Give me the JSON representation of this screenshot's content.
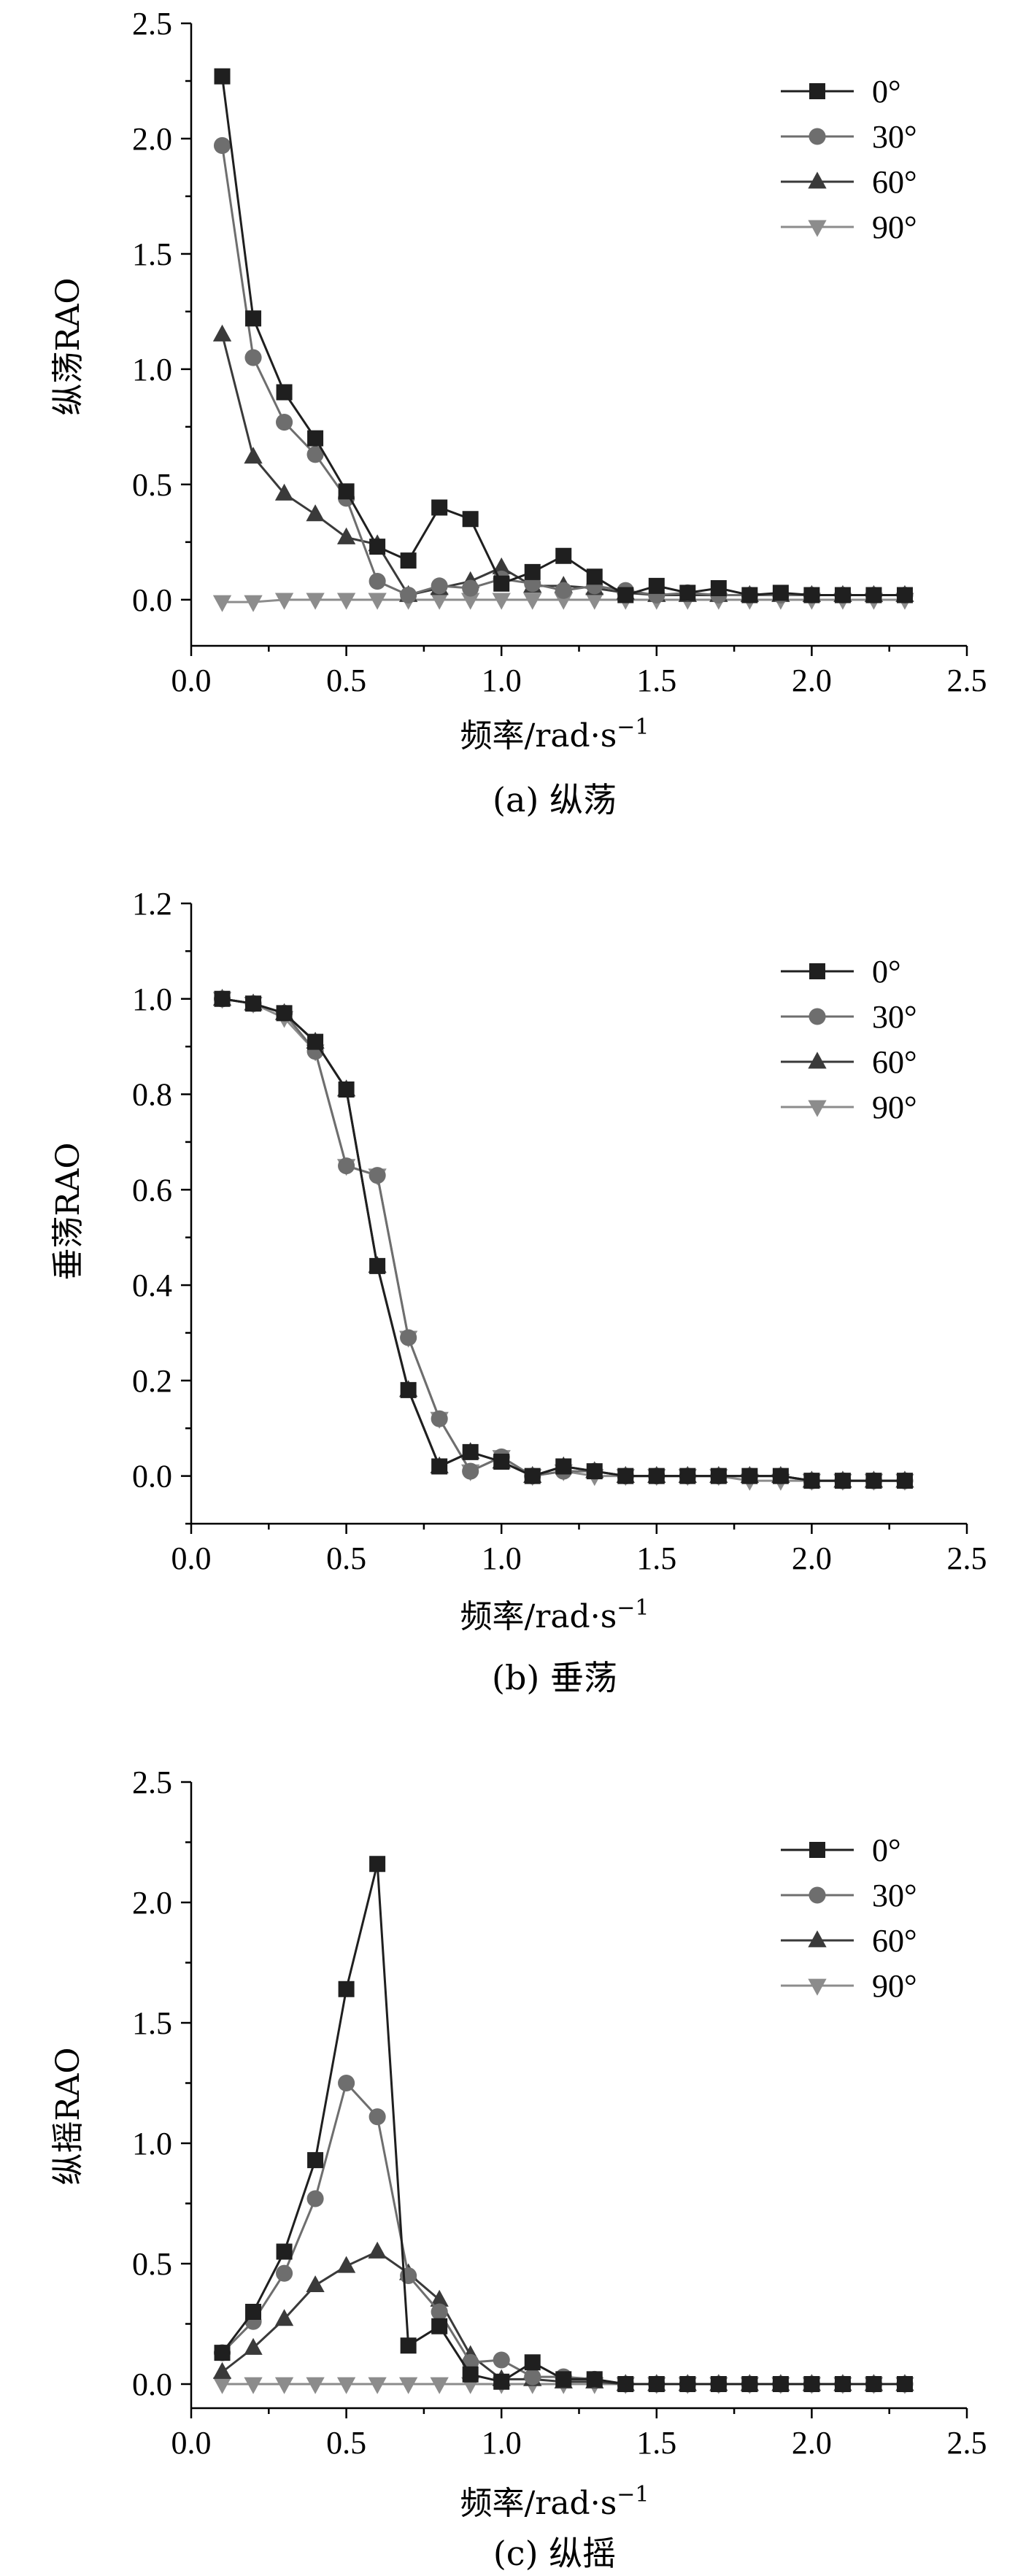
{
  "colors": {
    "0deg": "#1f1f1f",
    "30deg": "#6e6e6e",
    "60deg": "#3a3a3a",
    "90deg": "#8c8c8c"
  },
  "chart_data": [
    {
      "type": "line",
      "caption": "(a) 纵荡",
      "xlabel_main": "频率/rad·s",
      "xlabel_sup": "−1",
      "ylabel": "纵荡RAO",
      "xlim": [
        0.0,
        2.5
      ],
      "ylim": [
        -0.2,
        2.5
      ],
      "xticks": [
        "0.0",
        "0.5",
        "1.0",
        "1.5",
        "2.0",
        "2.5"
      ],
      "yticks": [
        "0.0",
        "0.5",
        "1.0",
        "1.5",
        "2.0",
        "2.5"
      ],
      "legend_position": "top-right",
      "x": [
        0.1,
        0.2,
        0.3,
        0.4,
        0.5,
        0.6,
        0.7,
        0.8,
        0.9,
        1.0,
        1.1,
        1.2,
        1.3,
        1.4,
        1.5,
        1.6,
        1.7,
        1.8,
        1.9,
        2.0,
        2.1,
        2.2,
        2.3
      ],
      "series": [
        {
          "name": "0°",
          "marker": "square",
          "color_key": "0deg",
          "values": [
            2.27,
            1.22,
            0.9,
            0.7,
            0.47,
            0.23,
            0.17,
            0.4,
            0.35,
            0.07,
            0.12,
            0.19,
            0.1,
            0.02,
            0.06,
            0.03,
            0.05,
            0.02,
            0.03,
            0.02,
            0.02,
            0.02,
            0.02
          ]
        },
        {
          "name": "30°",
          "marker": "circle",
          "color_key": "30deg",
          "values": [
            1.97,
            1.05,
            0.77,
            0.63,
            0.44,
            0.08,
            0.02,
            0.06,
            0.05,
            0.09,
            0.07,
            0.04,
            0.06,
            0.04,
            0.02,
            0.03,
            0.02,
            0.02,
            0.02,
            0.02,
            0.02,
            0.02,
            0.02
          ]
        },
        {
          "name": "60°",
          "marker": "triangle-up",
          "color_key": "60deg",
          "values": [
            1.15,
            0.62,
            0.46,
            0.37,
            0.27,
            0.24,
            0.02,
            0.05,
            0.08,
            0.14,
            0.06,
            0.06,
            0.05,
            0.03,
            0.02,
            0.02,
            0.02,
            0.02,
            0.02,
            0.02,
            0.02,
            0.02,
            0.02
          ]
        },
        {
          "name": "90°",
          "marker": "triangle-down",
          "color_key": "90deg",
          "values": [
            -0.01,
            -0.01,
            0.0,
            0.0,
            0.0,
            0.0,
            0.0,
            0.0,
            0.0,
            0.0,
            0.0,
            0.0,
            0.0,
            0.0,
            0.0,
            0.0,
            0.0,
            0.0,
            0.0,
            0.0,
            0.0,
            0.0,
            0.0
          ]
        }
      ]
    },
    {
      "type": "line",
      "caption": "(b) 垂荡",
      "xlabel_main": "频率/rad·s",
      "xlabel_sup": "−1",
      "ylabel": "垂荡RAO",
      "xlim": [
        0.0,
        2.5
      ],
      "ylim": [
        -0.1,
        1.2
      ],
      "xticks": [
        "0.0",
        "0.5",
        "1.0",
        "1.5",
        "2.0",
        "2.5"
      ],
      "yticks": [
        "0.0",
        "0.2",
        "0.4",
        "0.6",
        "0.8",
        "1.0",
        "1.2"
      ],
      "legend_position": "top-right",
      "x": [
        0.1,
        0.2,
        0.3,
        0.4,
        0.5,
        0.6,
        0.7,
        0.8,
        0.9,
        1.0,
        1.1,
        1.2,
        1.3,
        1.4,
        1.5,
        1.6,
        1.7,
        1.8,
        1.9,
        2.0,
        2.1,
        2.2,
        2.3
      ],
      "series": [
        {
          "name": "0°",
          "marker": "square",
          "color_key": "0deg",
          "values": [
            1.0,
            0.99,
            0.97,
            0.91,
            0.81,
            0.44,
            0.18,
            0.02,
            0.05,
            0.03,
            0.0,
            0.02,
            0.01,
            0.0,
            0.0,
            0.0,
            0.0,
            0.0,
            0.0,
            -0.01,
            -0.01,
            -0.01,
            -0.01
          ]
        },
        {
          "name": "30°",
          "marker": "circle",
          "color_key": "30deg",
          "values": [
            1.0,
            0.99,
            0.97,
            0.89,
            0.65,
            0.63,
            0.29,
            0.12,
            0.01,
            0.04,
            0.0,
            0.01,
            0.01,
            0.0,
            0.0,
            0.0,
            0.0,
            0.0,
            0.0,
            -0.01,
            -0.01,
            -0.01,
            -0.01
          ]
        },
        {
          "name": "60°",
          "marker": "triangle-up",
          "color_key": "60deg",
          "values": [
            1.0,
            0.99,
            0.97,
            0.91,
            0.81,
            0.44,
            0.18,
            0.02,
            0.05,
            0.03,
            0.0,
            0.02,
            0.01,
            0.0,
            0.0,
            0.0,
            0.0,
            0.0,
            0.0,
            -0.01,
            -0.01,
            -0.01,
            -0.01
          ]
        },
        {
          "name": "90°",
          "marker": "triangle-down",
          "color_key": "90deg",
          "values": [
            1.0,
            0.99,
            0.96,
            0.89,
            0.65,
            0.63,
            0.29,
            0.12,
            0.01,
            0.04,
            0.0,
            0.01,
            0.0,
            0.0,
            0.0,
            0.0,
            0.0,
            -0.01,
            -0.01,
            -0.01,
            -0.01,
            -0.01,
            -0.01
          ]
        }
      ]
    },
    {
      "type": "line",
      "caption": "(c) 纵摇",
      "xlabel_main": "频率/rad·s",
      "xlabel_sup": "−1",
      "ylabel": "纵摇RAO",
      "xlim": [
        0.0,
        2.5
      ],
      "ylim": [
        -0.1,
        2.5
      ],
      "xticks": [
        "0.0",
        "0.5",
        "1.0",
        "1.5",
        "2.0",
        "2.5"
      ],
      "yticks": [
        "0.0",
        "0.5",
        "1.0",
        "1.5",
        "2.0",
        "2.5"
      ],
      "legend_position": "top-right",
      "x": [
        0.1,
        0.2,
        0.3,
        0.4,
        0.5,
        0.6,
        0.7,
        0.8,
        0.9,
        1.0,
        1.1,
        1.2,
        1.3,
        1.4,
        1.5,
        1.6,
        1.7,
        1.8,
        1.9,
        2.0,
        2.1,
        2.2,
        2.3
      ],
      "series": [
        {
          "name": "0°",
          "marker": "square",
          "color_key": "0deg",
          "values": [
            0.13,
            0.3,
            0.55,
            0.93,
            1.64,
            2.16,
            0.16,
            0.24,
            0.04,
            0.01,
            0.09,
            0.02,
            0.02,
            0.0,
            0.0,
            0.0,
            0.0,
            0.0,
            0.0,
            0.0,
            0.0,
            0.0,
            0.0
          ]
        },
        {
          "name": "30°",
          "marker": "circle",
          "color_key": "30deg",
          "values": [
            0.13,
            0.26,
            0.46,
            0.77,
            1.25,
            1.11,
            0.45,
            0.3,
            0.09,
            0.1,
            0.03,
            0.03,
            0.02,
            0.0,
            0.0,
            0.0,
            0.0,
            0.0,
            0.0,
            0.0,
            0.0,
            0.0,
            0.0
          ]
        },
        {
          "name": "60°",
          "marker": "triangle-up",
          "color_key": "60deg",
          "values": [
            0.05,
            0.15,
            0.27,
            0.41,
            0.49,
            0.55,
            0.46,
            0.35,
            0.12,
            0.02,
            0.02,
            0.01,
            0.01,
            0.0,
            0.0,
            0.0,
            0.0,
            0.0,
            0.0,
            0.0,
            0.0,
            0.0,
            0.0
          ]
        },
        {
          "name": "90°",
          "marker": "triangle-down",
          "color_key": "90deg",
          "values": [
            0.0,
            0.0,
            0.0,
            0.0,
            0.0,
            0.0,
            0.0,
            0.0,
            0.0,
            0.0,
            0.0,
            0.0,
            0.0,
            0.0,
            0.0,
            0.0,
            0.0,
            0.0,
            0.0,
            0.0,
            0.0,
            0.0,
            0.0
          ]
        }
      ]
    }
  ]
}
